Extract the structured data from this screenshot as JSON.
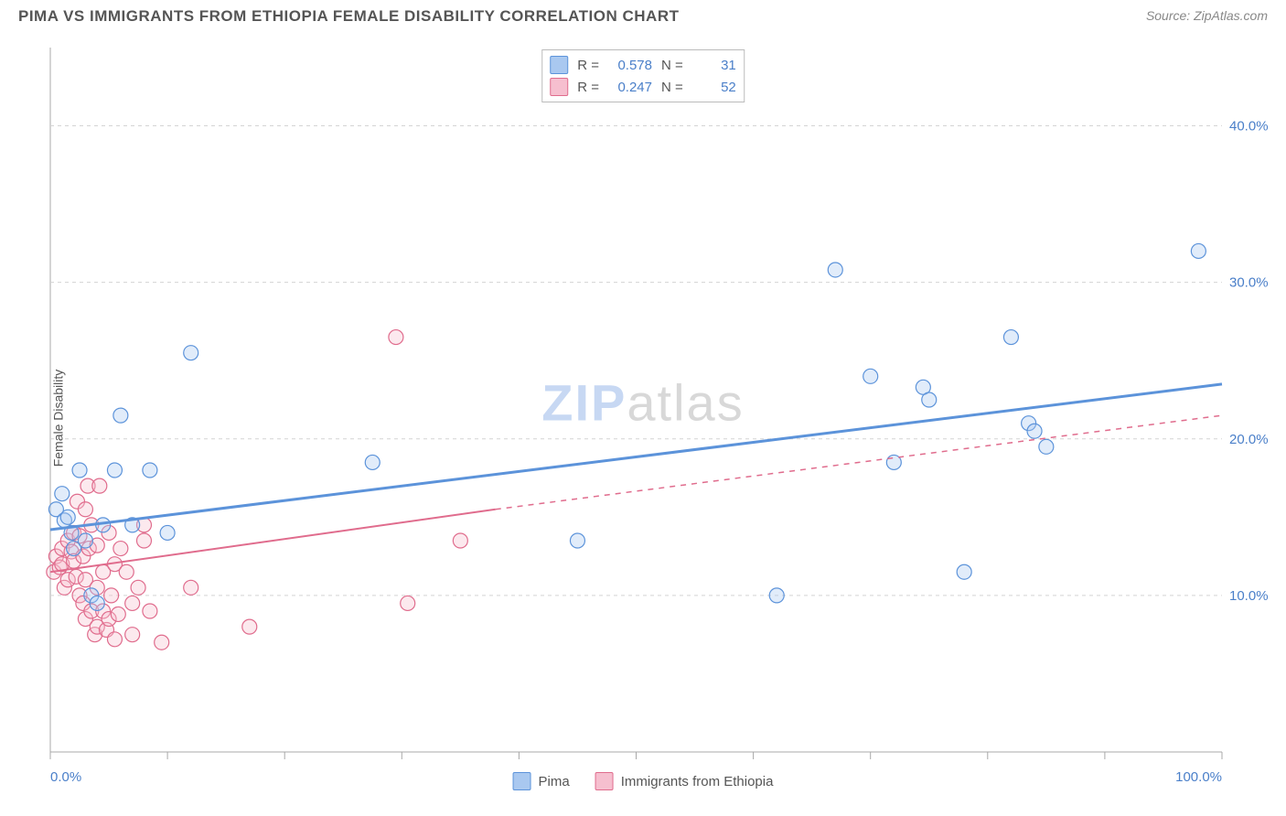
{
  "header": {
    "title": "PIMA VS IMMIGRANTS FROM ETHIOPIA FEMALE DISABILITY CORRELATION CHART",
    "source_prefix": "Source: ",
    "source_name": "ZipAtlas.com"
  },
  "watermark": {
    "zip": "ZIP",
    "atlas": "atlas"
  },
  "ylabel": "Female Disability",
  "chart": {
    "type": "scatter",
    "background_color": "#ffffff",
    "grid_color": "#d4d4d4",
    "axis_color": "#a8a8a8",
    "xlim": [
      0,
      100
    ],
    "ylim": [
      0,
      45
    ],
    "x_ticks": [
      0,
      10,
      20,
      30,
      40,
      50,
      60,
      70,
      80,
      90,
      100
    ],
    "x_tick_labels_shown": {
      "0": "0.0%",
      "100": "100.0%"
    },
    "y_gridlines": [
      10,
      20,
      30,
      40
    ],
    "y_tick_labels": {
      "10": "10.0%",
      "20": "20.0%",
      "30": "30.0%",
      "40": "40.0%"
    },
    "label_color": "#4a7fc9",
    "label_fontsize": 15,
    "marker_radius": 8,
    "marker_fill_opacity": 0.35,
    "marker_stroke_width": 1.2,
    "line_width_blue": 3,
    "line_width_pink": 2,
    "series_a": {
      "name": "Pima",
      "color_fill": "#a9c8f0",
      "color_stroke": "#5c93da",
      "R": "0.578",
      "N": "31",
      "trend": {
        "x1": 0,
        "y1": 14.2,
        "x2": 100,
        "y2": 23.5
      },
      "points": [
        [
          0.5,
          15.5
        ],
        [
          1,
          16.5
        ],
        [
          1.2,
          14.8
        ],
        [
          1.5,
          15.0
        ],
        [
          1.8,
          14.0
        ],
        [
          2.0,
          13.0
        ],
        [
          2.5,
          18.0
        ],
        [
          3.0,
          13.5
        ],
        [
          3.5,
          10.0
        ],
        [
          4.0,
          9.5
        ],
        [
          4.5,
          14.5
        ],
        [
          5.5,
          18.0
        ],
        [
          6.0,
          21.5
        ],
        [
          7.0,
          14.5
        ],
        [
          8.5,
          18.0
        ],
        [
          10.0,
          14.0
        ],
        [
          12.0,
          25.5
        ],
        [
          27.5,
          18.5
        ],
        [
          45.0,
          13.5
        ],
        [
          62.0,
          10.0
        ],
        [
          67.0,
          30.8
        ],
        [
          70.0,
          24.0
        ],
        [
          72.0,
          18.5
        ],
        [
          74.5,
          23.3
        ],
        [
          75.0,
          22.5
        ],
        [
          78.0,
          11.5
        ],
        [
          82.0,
          26.5
        ],
        [
          83.5,
          21.0
        ],
        [
          84.0,
          20.5
        ],
        [
          85.0,
          19.5
        ],
        [
          98.0,
          32.0
        ]
      ]
    },
    "series_b": {
      "name": "Immigrants from Ethiopia",
      "color_fill": "#f6bfcf",
      "color_stroke": "#e06c8d",
      "R": "0.247",
      "N": "52",
      "trend_solid": {
        "x1": 0,
        "y1": 11.5,
        "x2": 38,
        "y2": 15.5
      },
      "trend_dash": {
        "x1": 38,
        "y1": 15.5,
        "x2": 100,
        "y2": 21.5
      },
      "points": [
        [
          0.3,
          11.5
        ],
        [
          0.5,
          12.5
        ],
        [
          0.8,
          11.8
        ],
        [
          1.0,
          12.0
        ],
        [
          1.0,
          13.0
        ],
        [
          1.2,
          10.5
        ],
        [
          1.5,
          11.0
        ],
        [
          1.5,
          13.5
        ],
        [
          1.8,
          12.8
        ],
        [
          2.0,
          12.2
        ],
        [
          2.0,
          14.0
        ],
        [
          2.2,
          11.2
        ],
        [
          2.3,
          16.0
        ],
        [
          2.5,
          10.0
        ],
        [
          2.5,
          13.8
        ],
        [
          2.8,
          9.5
        ],
        [
          2.8,
          12.5
        ],
        [
          3.0,
          8.5
        ],
        [
          3.0,
          11.0
        ],
        [
          3.0,
          15.5
        ],
        [
          3.2,
          17.0
        ],
        [
          3.3,
          13.0
        ],
        [
          3.5,
          9.0
        ],
        [
          3.5,
          14.5
        ],
        [
          3.8,
          7.5
        ],
        [
          4.0,
          8.0
        ],
        [
          4.0,
          10.5
        ],
        [
          4.0,
          13.2
        ],
        [
          4.2,
          17.0
        ],
        [
          4.5,
          9.0
        ],
        [
          4.5,
          11.5
        ],
        [
          4.8,
          7.8
        ],
        [
          5.0,
          8.5
        ],
        [
          5.0,
          14.0
        ],
        [
          5.2,
          10.0
        ],
        [
          5.5,
          7.2
        ],
        [
          5.5,
          12.0
        ],
        [
          5.8,
          8.8
        ],
        [
          6.0,
          13.0
        ],
        [
          6.5,
          11.5
        ],
        [
          7.0,
          7.5
        ],
        [
          7.0,
          9.5
        ],
        [
          7.5,
          10.5
        ],
        [
          8.0,
          13.5
        ],
        [
          8.0,
          14.5
        ],
        [
          8.5,
          9.0
        ],
        [
          9.5,
          7.0
        ],
        [
          12.0,
          10.5
        ],
        [
          17.0,
          8.0
        ],
        [
          29.5,
          26.5
        ],
        [
          30.5,
          9.5
        ],
        [
          35.0,
          13.5
        ]
      ]
    }
  },
  "legend_top": {
    "R_label": "R =",
    "N_label": "N ="
  },
  "legend_bottom": {
    "a": "Pima",
    "b": "Immigrants from Ethiopia"
  }
}
